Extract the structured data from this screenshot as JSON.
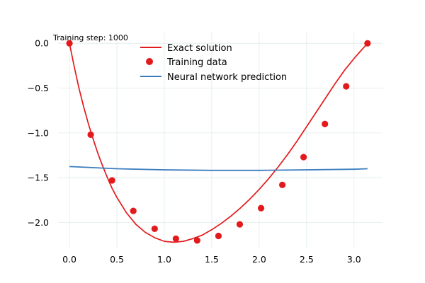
{
  "chart_data": {
    "type": "line",
    "annotation": "Training step: 1000",
    "xlim": [
      -0.12,
      3.3
    ],
    "ylim": [
      -2.28,
      0.12
    ],
    "x_ticks": [
      0.0,
      0.5,
      1.0,
      1.5,
      2.0,
      2.5,
      3.0
    ],
    "x_tick_labels": [
      "0.0",
      "0.5",
      "1.0",
      "1.5",
      "2.0",
      "2.5",
      "3.0"
    ],
    "y_ticks": [
      0.0,
      -0.5,
      -1.0,
      -1.5,
      -2.0
    ],
    "y_tick_labels": [
      "0.0",
      "−0.5",
      "−1.0",
      "−1.5",
      "−2.0"
    ],
    "grid": true,
    "legend_position": "top-center",
    "colors": {
      "exact": "#e31a1c",
      "training": "#e31a1c",
      "nn": "#3a7dbf"
    },
    "series": [
      {
        "name": "Exact solution",
        "kind": "line",
        "x": [
          0.0,
          0.05,
          0.1,
          0.15,
          0.2,
          0.25,
          0.3,
          0.35,
          0.4,
          0.45,
          0.5,
          0.6,
          0.7,
          0.8,
          0.9,
          1.0,
          1.1,
          1.2,
          1.3,
          1.4,
          1.5,
          1.6,
          1.7,
          1.8,
          1.9,
          2.0,
          2.1,
          2.2,
          2.3,
          2.4,
          2.5,
          2.6,
          2.7,
          2.8,
          2.9,
          3.0,
          3.1,
          3.1416
        ],
        "y": [
          0.0,
          -0.26,
          -0.5,
          -0.71,
          -0.9,
          -1.07,
          -1.23,
          -1.37,
          -1.5,
          -1.62,
          -1.72,
          -1.89,
          -2.02,
          -2.11,
          -2.17,
          -2.21,
          -2.22,
          -2.21,
          -2.18,
          -2.14,
          -2.08,
          -2.01,
          -1.93,
          -1.84,
          -1.74,
          -1.63,
          -1.51,
          -1.38,
          -1.24,
          -1.09,
          -0.93,
          -0.77,
          -0.61,
          -0.45,
          -0.3,
          -0.17,
          -0.05,
          0.0
        ]
      },
      {
        "name": "Training data",
        "kind": "scatter",
        "x": [
          0.0,
          0.224,
          0.449,
          0.673,
          0.898,
          1.122,
          1.346,
          1.571,
          1.795,
          2.02,
          2.244,
          2.468,
          2.693,
          2.917,
          3.142
        ],
        "y": [
          0.0,
          -1.02,
          -1.53,
          -1.87,
          -2.07,
          -2.18,
          -2.2,
          -2.15,
          -2.02,
          -1.84,
          -1.58,
          -1.27,
          -0.9,
          -0.48,
          0.0
        ]
      },
      {
        "name": "Neural network prediction",
        "kind": "line",
        "x": [
          0.0,
          0.5,
          1.0,
          1.5,
          2.0,
          2.5,
          3.0,
          3.1416
        ],
        "y": [
          -1.375,
          -1.4,
          -1.412,
          -1.418,
          -1.418,
          -1.412,
          -1.405,
          -1.4
        ]
      }
    ]
  }
}
